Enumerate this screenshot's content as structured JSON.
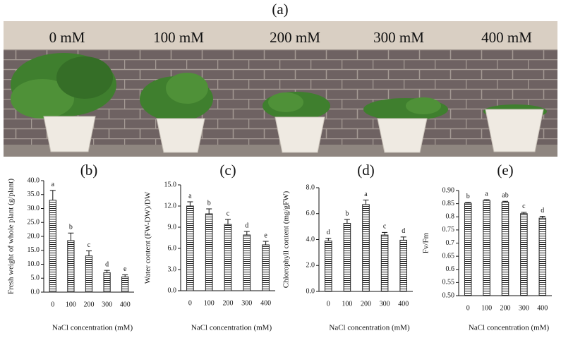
{
  "panel_a": {
    "label": "(a)",
    "treatments": [
      "0 mM",
      "100 mM",
      "200 mM",
      "300 mM",
      "400 mM"
    ]
  },
  "chart_data": [
    {
      "type": "bar",
      "title": "(b)",
      "ylabel": "Fresh weight of whole plant (g/plant)",
      "xlabel": "NaCl concentration (mM)",
      "categories": [
        "0",
        "100",
        "200",
        "300",
        "400"
      ],
      "values": [
        33,
        18.5,
        13,
        7,
        5.5
      ],
      "errors": [
        3.5,
        2.7,
        1.8,
        0.8,
        0.7
      ],
      "letters": [
        "a",
        "b",
        "c",
        "d",
        "e"
      ],
      "color": "#222222",
      "ylim": [
        0,
        40
      ],
      "yticks": [
        {
          "value": 0,
          "label": "0.0"
        },
        {
          "value": 5,
          "label": "5.0"
        },
        {
          "value": 10,
          "label": "10.0"
        },
        {
          "value": 15,
          "label": "15.0"
        },
        {
          "value": 20,
          "label": "20.0"
        },
        {
          "value": 25,
          "label": "25.0"
        },
        {
          "value": 30,
          "label": "30.0"
        },
        {
          "value": 35,
          "label": "35.0"
        },
        {
          "value": 40,
          "label": "40.0"
        }
      ]
    },
    {
      "type": "bar",
      "title": "(c)",
      "ylabel": "Water content  (FW-DW)/DW",
      "xlabel": "NaCl concentration (mM)",
      "categories": [
        "0",
        "100",
        "200",
        "300",
        "400"
      ],
      "values": [
        12,
        10.9,
        9.4,
        7.9,
        6.5
      ],
      "errors": [
        0.6,
        0.7,
        0.7,
        0.5,
        0.5
      ],
      "letters": [
        "a",
        "b",
        "c",
        "d",
        "e"
      ],
      "color": "#222222",
      "ylim": [
        0,
        15
      ],
      "yticks": [
        {
          "value": 0,
          "label": "0.0"
        },
        {
          "value": 3,
          "label": "3.0"
        },
        {
          "value": 6,
          "label": "6.0"
        },
        {
          "value": 9,
          "label": "9.0"
        },
        {
          "value": 12,
          "label": "12.0"
        },
        {
          "value": 15,
          "label": "15.0"
        }
      ]
    },
    {
      "type": "bar",
      "title": "(d)",
      "ylabel": "Chlorophyll content (mg/gFW)",
      "xlabel": "NaCl concentration (mM)",
      "categories": [
        "0",
        "100",
        "200",
        "300",
        "400"
      ],
      "values": [
        3.9,
        5.25,
        6.7,
        4.35,
        3.95
      ],
      "errors": [
        0.2,
        0.3,
        0.35,
        0.2,
        0.25
      ],
      "letters": [
        "d",
        "b",
        "a",
        "c",
        "d"
      ],
      "color": "#222222",
      "ylim": [
        0,
        8
      ],
      "yticks": [
        {
          "value": 0,
          "label": "0.0"
        },
        {
          "value": 2,
          "label": "2.0"
        },
        {
          "value": 4,
          "label": "4.0"
        },
        {
          "value": 6,
          "label": "6.0"
        },
        {
          "value": 8,
          "label": "8.0"
        }
      ]
    },
    {
      "type": "bar",
      "title": "(e)",
      "ylabel": "Fv/Fm",
      "xlabel": "NaCl concentration (mM)",
      "categories": [
        "0",
        "100",
        "200",
        "300",
        "400"
      ],
      "values": [
        0.852,
        0.862,
        0.856,
        0.812,
        0.795
      ],
      "errors": [
        0.003,
        0.003,
        0.003,
        0.005,
        0.007
      ],
      "letters": [
        "b",
        "a",
        "ab",
        "c",
        "d"
      ],
      "color": "#222222",
      "ylim": [
        0.5,
        0.9
      ],
      "yticks": [
        {
          "value": 0.5,
          "label": "0.50"
        },
        0.55,
        0.6,
        0.65,
        0.7,
        0.75,
        0.8,
        0.85,
        {
          "value": 0.9,
          "label": "0.90"
        }
      ]
    }
  ]
}
